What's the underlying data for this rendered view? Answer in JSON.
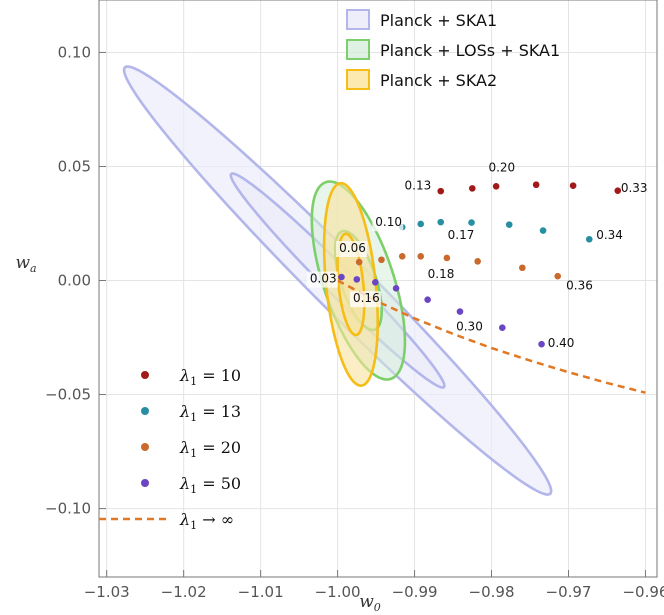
{
  "chart_data": {
    "type": "scatter",
    "xlabel": "w",
    "xlabel_sub": "0",
    "ylabel": "w",
    "ylabel_sub": "a",
    "xlim": [
      -1.031,
      -0.9585
    ],
    "ylim": [
      -0.13,
      0.123
    ],
    "xticks": [
      -1.03,
      -1.02,
      -1.01,
      -1.0,
      -0.99,
      -0.98,
      -0.97,
      -0.96
    ],
    "xtick_labels": [
      "−1.03",
      "−1.02",
      "−1.01",
      "−1.00",
      "−0.99",
      "−0.98",
      "−0.97",
      "−0.96"
    ],
    "yticks": [
      -0.1,
      -0.05,
      0.0,
      0.05,
      0.1
    ],
    "ytick_labels": [
      "−0.10",
      "−0.05",
      "0.00",
      "0.05",
      "0.10"
    ],
    "grid": true,
    "forecasts": [
      {
        "name": "Planck + SKA1",
        "color": "#b3b6ea",
        "fill": "#ebecfa",
        "opacity": 0.7,
        "center": [
          -1.0,
          0.0
        ],
        "ellipses": [
          {
            "semi_major": [
              0.02736,
              -0.09384
            ],
            "semi_minor": [
              0.00463,
              0.00135
            ]
          },
          {
            "semi_major": [
              0.01368,
              -0.04692
            ],
            "semi_minor": [
              0.002315,
              0.000675
            ]
          }
        ]
      },
      {
        "name": "Planck + LOSs + SKA1",
        "color": "#7ccf6a",
        "fill": "#d3ecd8",
        "opacity": 0.55,
        "center": [
          -0.9973,
          0.0
        ],
        "ellipses": [
          {
            "semi_major": [
              0.00376,
              -0.0434
            ],
            "semi_minor": [
              0.00474,
              0.00041
            ]
          },
          {
            "semi_major": [
              0.00188,
              -0.0217
            ],
            "semi_minor": [
              0.00237,
              0.000205
            ]
          }
        ]
      },
      {
        "name": "Planck + SKA2",
        "color": "#f5bd16",
        "fill": "#fae39c",
        "opacity": 0.6,
        "center": [
          -0.99827,
          -0.0017
        ],
        "ellipses": [
          {
            "semi_major": [
              0.0013,
              -0.0444
            ],
            "semi_minor": [
              0.00323,
              9.46e-05
            ]
          },
          {
            "semi_major": [
              0.00065,
              -0.0222
            ],
            "semi_minor": [
              0.001615,
              4.73e-05
            ]
          }
        ]
      }
    ],
    "series": [
      {
        "name": "λ1 = 10",
        "color": "#a11a19",
        "x": [
          -0.9866,
          -0.9825,
          -0.9794,
          -0.9742,
          -0.9694,
          -0.9636
        ],
        "y": [
          0.0392,
          0.0404,
          0.0413,
          0.042,
          0.0416,
          0.0394
        ]
      },
      {
        "name": "λ1 = 13",
        "color": "#278fa2",
        "x": [
          -0.9916,
          -0.9892,
          -0.9866,
          -0.9826,
          -0.9777,
          -0.9733,
          -0.9673
        ],
        "y": [
          0.0234,
          0.0248,
          0.0256,
          0.0254,
          0.0245,
          0.0219,
          0.0181
        ]
      },
      {
        "name": "λ1 = 20",
        "color": "#c96a2c",
        "x": [
          -0.9972,
          -0.9943,
          -0.9916,
          -0.9892,
          -0.9858,
          -0.9818,
          -0.976,
          -0.9714
        ],
        "y": [
          0.0081,
          0.0091,
          0.0106,
          0.0106,
          0.0099,
          0.0084,
          0.0056,
          0.0019
        ]
      },
      {
        "name": "λ1 = 50",
        "color": "#6b45c3",
        "x": [
          -0.9995,
          -0.9975,
          -0.9951,
          -0.9924,
          -0.9883,
          -0.9841,
          -0.9786,
          -0.9735
        ],
        "y": [
          0.0015,
          0.0005,
          -0.0008,
          -0.0034,
          -0.0084,
          -0.0136,
          -0.0207,
          -0.0279
        ]
      }
    ],
    "limit_curve": {
      "name": "λ1 → ∞",
      "color": "#e07824",
      "dashed": true,
      "x": [
        -1.0,
        -0.995,
        -0.99,
        -0.985,
        -0.98,
        -0.975,
        -0.97,
        -0.965,
        -0.96
      ],
      "y": [
        0.0,
        -0.0089,
        -0.0166,
        -0.0234,
        -0.0296,
        -0.0351,
        -0.0402,
        -0.0449,
        -0.0492
      ]
    },
    "annotations": [
      {
        "text": "0.13",
        "x": -0.9913,
        "y": 0.0398,
        "anchor": "start",
        "box": false
      },
      {
        "text": "0.20",
        "x": -0.9804,
        "y": 0.0477,
        "anchor": "start",
        "box": false
      },
      {
        "text": "0.33",
        "x": -0.9632,
        "y": 0.0389,
        "anchor": "start",
        "box": false
      },
      {
        "text": "0.10",
        "x": -0.9951,
        "y": 0.0238,
        "anchor": "start",
        "box": true
      },
      {
        "text": "0.17",
        "x": -0.9857,
        "y": 0.0183,
        "anchor": "start",
        "box": false
      },
      {
        "text": "0.34",
        "x": -0.9664,
        "y": 0.0182,
        "anchor": "start",
        "box": false
      },
      {
        "text": "0.06",
        "x": -0.9998,
        "y": 0.0125,
        "anchor": "start",
        "box": true
      },
      {
        "text": "0.18",
        "x": -0.9883,
        "y": 0.0012,
        "anchor": "start",
        "box": false
      },
      {
        "text": "0.36",
        "x": -0.9703,
        "y": -0.004,
        "anchor": "start",
        "box": false
      },
      {
        "text": "0.03",
        "x": -1.0036,
        "y": -0.0009,
        "anchor": "start",
        "box": true
      },
      {
        "text": "0.16",
        "x": -0.998,
        "y": -0.0095,
        "anchor": "start",
        "box": true
      },
      {
        "text": "0.30",
        "x": -0.9846,
        "y": -0.022,
        "anchor": "start",
        "box": false
      },
      {
        "text": "0.40",
        "x": -0.9727,
        "y": -0.0292,
        "anchor": "start",
        "box": false
      }
    ],
    "legend_top": {
      "placement": "top-right",
      "entries": [
        "Planck + SKA1",
        "Planck + LOSs + SKA1",
        "Planck + SKA2"
      ]
    },
    "legend_bottom": {
      "placement": "bottom-left",
      "entries": [
        {
          "symbol": "λ",
          "sub": "1",
          "text": " = 10"
        },
        {
          "symbol": "λ",
          "sub": "1",
          "text": " = 13"
        },
        {
          "symbol": "λ",
          "sub": "1",
          "text": " = 20"
        },
        {
          "symbol": "λ",
          "sub": "1",
          "text": " = 50"
        },
        {
          "symbol": "λ",
          "sub": "1",
          "text": " → ∞"
        }
      ]
    }
  }
}
